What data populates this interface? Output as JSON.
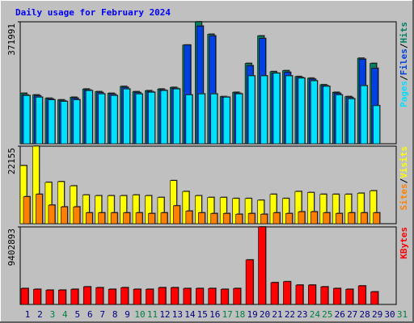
{
  "chart_data": [
    {
      "type": "bar",
      "title": "Daily usage for February 2024",
      "ylim": [
        0,
        371991
      ],
      "yticks": [
        371991
      ],
      "legend_separator": "/",
      "series": [
        {
          "name": "Hits",
          "color": "#008060",
          "values": [
            154000,
            149000,
            139000,
            134000,
            142000,
            167000,
            159000,
            154000,
            175000,
            159000,
            162000,
            167000,
            172000,
            301000,
            372000,
            334000,
            144000,
            157000,
            245000,
            329000,
            220000,
            223000,
            205000,
            200000,
            180000,
            157000,
            144000,
            261000,
            245000,
            null,
            null
          ]
        },
        {
          "name": "Files",
          "color": "#0040e0",
          "values": [
            149000,
            146000,
            137000,
            131000,
            139000,
            164000,
            156000,
            151000,
            172000,
            156000,
            159000,
            164000,
            169000,
            301000,
            359000,
            329000,
            142000,
            154000,
            238000,
            321000,
            215000,
            218000,
            202000,
            197000,
            177000,
            154000,
            141000,
            258000,
            230000,
            null,
            null
          ]
        },
        {
          "name": "Pages",
          "color": "#00e0ff",
          "values": [
            147000,
            142000,
            134000,
            129000,
            134000,
            162000,
            152000,
            147000,
            167000,
            152000,
            157000,
            162000,
            167000,
            149000,
            152000,
            152000,
            142000,
            152000,
            207000,
            207000,
            215000,
            207000,
            200000,
            192000,
            175000,
            149000,
            137000,
            177000,
            116000,
            null,
            null
          ]
        }
      ]
    },
    {
      "type": "bar",
      "ylim": [
        0,
        22155
      ],
      "yticks": [
        22155
      ],
      "legend_separator": "/",
      "series": [
        {
          "name": "Visits",
          "color": "#ffff00",
          "values": [
            16600,
            22155,
            11800,
            12000,
            10800,
            8200,
            8000,
            8000,
            8000,
            8200,
            8000,
            7500,
            12300,
            9200,
            8000,
            7500,
            7500,
            7200,
            7200,
            6700,
            8400,
            7200,
            9200,
            8900,
            8400,
            8400,
            8400,
            8700,
            9400,
            null,
            null
          ]
        },
        {
          "name": "Sites",
          "color": "#ff8000",
          "values": [
            7700,
            8400,
            5300,
            4800,
            4800,
            3100,
            3100,
            3100,
            3100,
            3100,
            2900,
            3100,
            5100,
            3600,
            3100,
            2900,
            2900,
            2700,
            2900,
            2700,
            3100,
            2900,
            3400,
            3400,
            3100,
            2900,
            3100,
            3100,
            3100,
            null,
            null
          ]
        }
      ]
    },
    {
      "type": "bar",
      "ylim": [
        0,
        9402893
      ],
      "yticks": [
        9402893
      ],
      "series": [
        {
          "name": "KBytes",
          "color": "#ff0000",
          "values": [
            1940000,
            1840000,
            1740000,
            1740000,
            1840000,
            2140000,
            2040000,
            1840000,
            2040000,
            1840000,
            1840000,
            2040000,
            2040000,
            1940000,
            1940000,
            1940000,
            1840000,
            1940000,
            5400000,
            9402893,
            2650000,
            2760000,
            2350000,
            2350000,
            2140000,
            1940000,
            1840000,
            2250000,
            1530000,
            null,
            null
          ]
        }
      ],
      "categories": [
        "1",
        "2",
        "3",
        "4",
        "5",
        "6",
        "7",
        "8",
        "9",
        "10",
        "11",
        "12",
        "13",
        "14",
        "15",
        "16",
        "17",
        "18",
        "19",
        "20",
        "21",
        "22",
        "23",
        "24",
        "25",
        "26",
        "27",
        "28",
        "29",
        "30",
        "31"
      ],
      "category_colors": [
        "#000080",
        "#000080",
        "#008040",
        "#008040",
        "#000080",
        "#000080",
        "#000080",
        "#000080",
        "#000080",
        "#008040",
        "#008040",
        "#000080",
        "#000080",
        "#000080",
        "#000080",
        "#000080",
        "#008040",
        "#008040",
        "#000080",
        "#000080",
        "#000080",
        "#000080",
        "#000080",
        "#008040",
        "#008040",
        "#000080",
        "#000080",
        "#000080",
        "#000080",
        "#000080",
        "#008040"
      ]
    }
  ]
}
